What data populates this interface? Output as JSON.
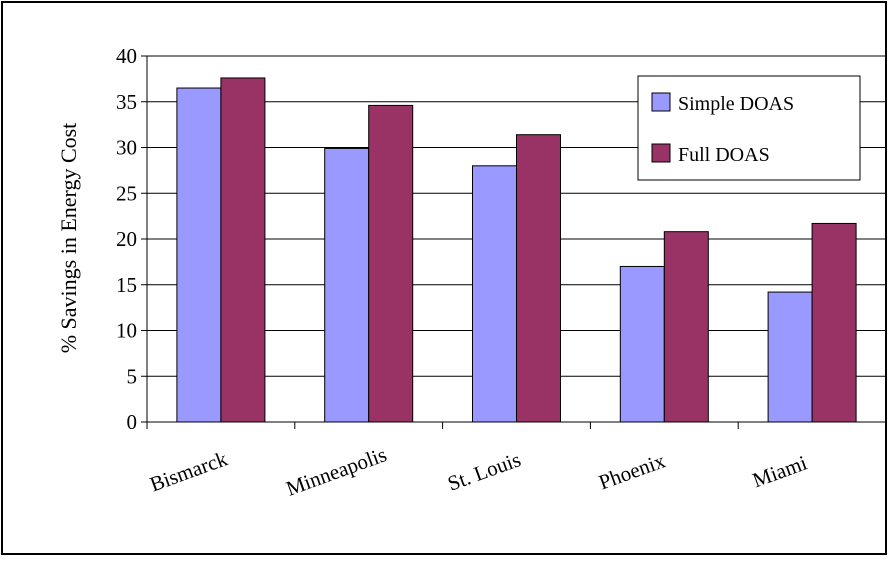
{
  "chart_data": {
    "type": "bar",
    "title": "",
    "xlabel": "",
    "ylabel": "% Savings in Energy Cost",
    "categories": [
      "Bismarck",
      "Minneapolis",
      "St. Louis",
      "Phoenix",
      "Miami"
    ],
    "series": [
      {
        "name": "Simple DOAS",
        "color": "#9999ff",
        "values": [
          36.5,
          29.9,
          28.0,
          17.0,
          14.2
        ]
      },
      {
        "name": "Full DOAS",
        "color": "#993366",
        "values": [
          37.6,
          34.6,
          31.4,
          20.8,
          21.7
        ]
      }
    ],
    "ylim": [
      0,
      40
    ],
    "yticks": [
      0,
      5,
      10,
      15,
      20,
      25,
      30,
      35,
      40
    ],
    "grid": true,
    "legend_position": "top-right"
  }
}
